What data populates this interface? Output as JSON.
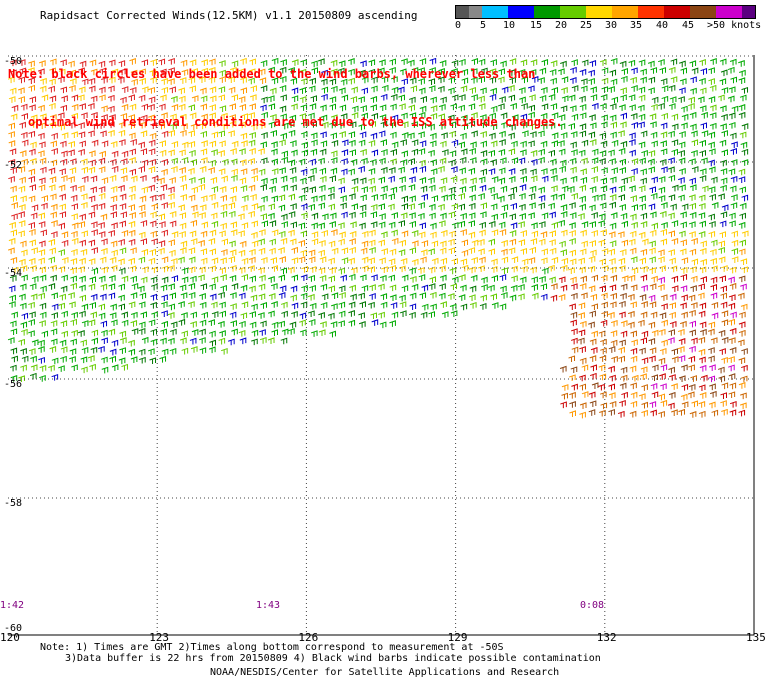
{
  "title": "Rapidsact Corrected Winds(12.5KM) v1.1 20150809 ascending",
  "note_line1": "Note: black circles have been added to the wind barbs, wherever less than",
  "note_line2": "optimal wind retrieval conditions are met due to the ISS attitude changes.",
  "legend": {
    "labels": [
      "0",
      "5",
      "10",
      "15",
      "20",
      "25",
      "30",
      "35",
      "40",
      "45",
      ">50 knots"
    ],
    "colors": [
      "#555555",
      "#888888",
      "#00bfff",
      "#0000ff",
      "#009900",
      "#66cc00",
      "#ffd700",
      "#ffa500",
      "#ff3300",
      "#cc0000",
      "#8b4513",
      "#cc00cc",
      "#5a0080"
    ]
  },
  "lat_labels": [
    "-50",
    "-52",
    "-54",
    "-56",
    "-58",
    "-60"
  ],
  "lon_labels": [
    "120",
    "123",
    "126",
    "129",
    "132",
    "135"
  ],
  "time_labels": [
    "1:42",
    "1:43",
    "0:08"
  ],
  "footnote1": "Note: 1) Times are GMT 2)Times along bottom correspond to measurement at -50S",
  "footnote2": "3)Data buffer is 22 hrs from 20150809 4) Black wind barbs indicate possible contamination",
  "credit": "NOAA/NESDIS/Center for Satellite Applications and Research",
  "map": {
    "lat_range": [
      -60,
      -50
    ],
    "lon_range": [
      120,
      135
    ],
    "grid": true
  }
}
